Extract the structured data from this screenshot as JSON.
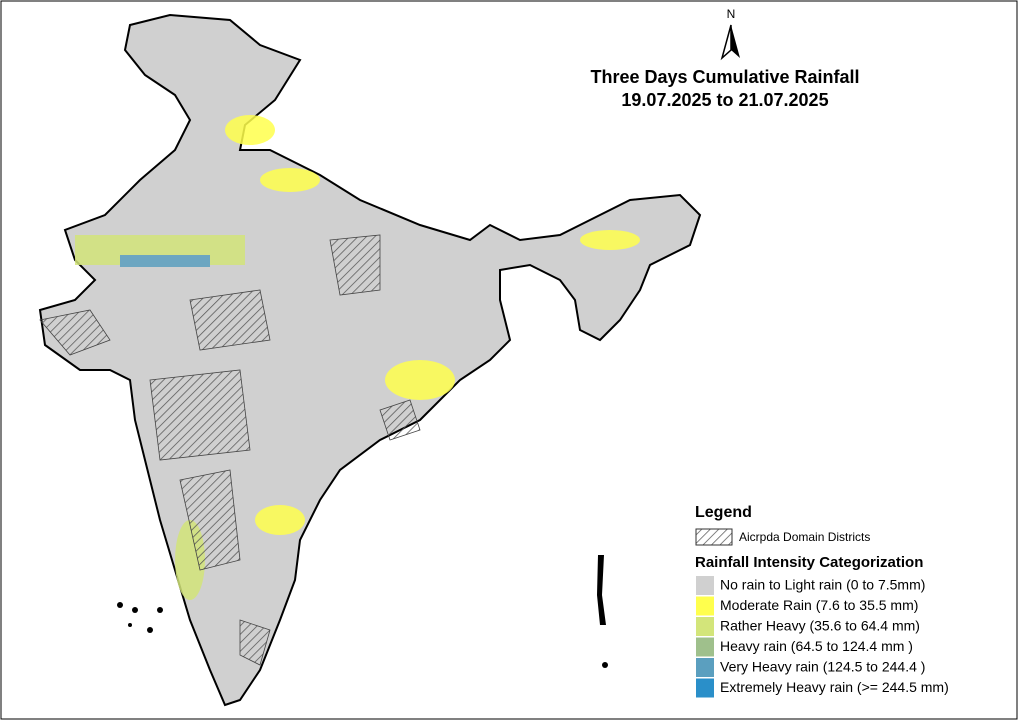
{
  "title": [
    "Three Days Cumulative Rainfall",
    "19.07.2025 to 21.07.2025"
  ],
  "north": "N",
  "legend": {
    "title": "Legend",
    "domain": "Aicrpda Domain Districts",
    "category_title": "Rainfall Intensity Categorization",
    "categories": [
      {
        "label": "No rain to Light rain (0 to 7.5mm)",
        "color": "#d0d0d0"
      },
      {
        "label": "Moderate Rain (7.6 to 35.5 mm)",
        "color": "#ffff4d"
      },
      {
        "label": "Rather Heavy (35.6 to 64.4 mm)",
        "color": "#d3e57a"
      },
      {
        "label": "Heavy rain (64.5 to 124.4 mm )",
        "color": "#9fc08c"
      },
      {
        "label": "Very Heavy rain (124.5 to 244.4 )",
        "color": "#5b9fbf"
      },
      {
        "label": "Extremely Heavy rain  (>= 244.5 mm)",
        "color": "#2a8fc9"
      }
    ]
  }
}
